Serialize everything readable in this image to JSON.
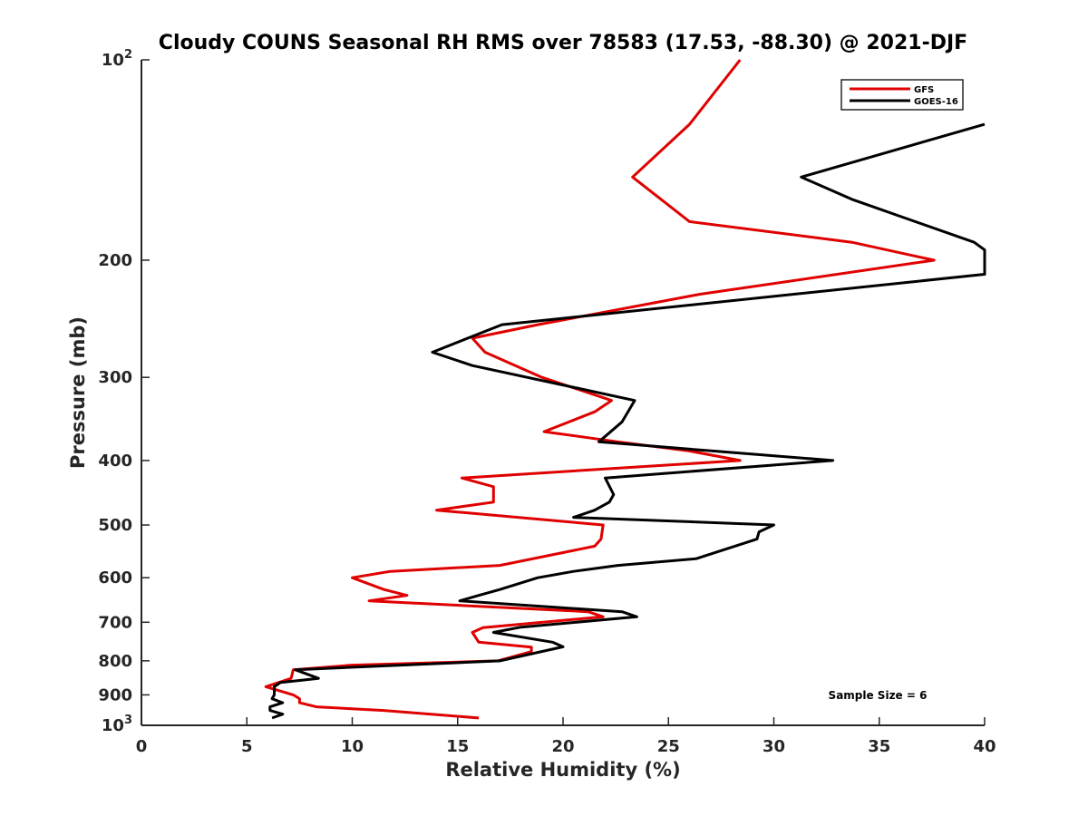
{
  "chart_data": {
    "type": "line",
    "title": "Cloudy COUNS Seasonal RH RMS over 78583 (17.53, -88.30) @ 2021-DJF",
    "xlabel": "Relative Humidity (%)",
    "ylabel": "Pressure (mb)",
    "xlim": [
      0,
      40
    ],
    "ylim": [
      100,
      1000
    ],
    "yscale": "log",
    "yreversed": true,
    "x_ticks": [
      "0",
      "5",
      "10",
      "15",
      "20",
      "25",
      "30",
      "35",
      "40"
    ],
    "y_ticks": [
      {
        "value": 100,
        "label": "10",
        "sup": "2"
      },
      {
        "value": 200,
        "label": "200",
        "sup": ""
      },
      {
        "value": 300,
        "label": "300",
        "sup": ""
      },
      {
        "value": 400,
        "label": "400",
        "sup": ""
      },
      {
        "value": 500,
        "label": "500",
        "sup": ""
      },
      {
        "value": 600,
        "label": "600",
        "sup": ""
      },
      {
        "value": 700,
        "label": "700",
        "sup": ""
      },
      {
        "value": 800,
        "label": "800",
        "sup": ""
      },
      {
        "value": 900,
        "label": "900",
        "sup": ""
      },
      {
        "value": 1000,
        "label": "10",
        "sup": "3"
      }
    ],
    "legend_position": "top-right",
    "annotation": "Sample Size = 6",
    "series": [
      {
        "name": "GFS",
        "color": "#e00000",
        "points": [
          [
            28.4,
            100
          ],
          [
            26.0,
            125
          ],
          [
            23.3,
            150
          ],
          [
            26.0,
            175
          ],
          [
            33.7,
            188
          ],
          [
            37.6,
            200
          ],
          [
            26.5,
            225
          ],
          [
            18.8,
            250
          ],
          [
            15.7,
            262
          ],
          [
            16.3,
            275
          ],
          [
            19.0,
            300
          ],
          [
            22.3,
            325
          ],
          [
            21.5,
            338
          ],
          [
            19.1,
            362
          ],
          [
            22.6,
            375
          ],
          [
            26.0,
            387
          ],
          [
            28.4,
            400
          ],
          [
            15.2,
            425
          ],
          [
            16.7,
            438
          ],
          [
            16.7,
            462
          ],
          [
            14.0,
            475
          ],
          [
            21.9,
            500
          ],
          [
            21.8,
            525
          ],
          [
            21.5,
            538
          ],
          [
            17.0,
            575
          ],
          [
            11.8,
            587
          ],
          [
            10.0,
            600
          ],
          [
            11.5,
            625
          ],
          [
            12.6,
            638
          ],
          [
            10.8,
            650
          ],
          [
            21.2,
            675
          ],
          [
            21.9,
            687
          ],
          [
            16.2,
            713
          ],
          [
            15.7,
            725
          ],
          [
            16.0,
            750
          ],
          [
            18.5,
            763
          ],
          [
            18.5,
            775
          ],
          [
            16.9,
            800
          ],
          [
            10.0,
            812
          ],
          [
            7.2,
            825
          ],
          [
            7.1,
            850
          ],
          [
            5.9,
            875
          ],
          [
            7.2,
            900
          ],
          [
            7.5,
            912
          ],
          [
            7.5,
            925
          ],
          [
            8.3,
            938
          ],
          [
            11.5,
            950
          ],
          [
            16.0,
            975
          ]
        ]
      },
      {
        "name": "GOES-16",
        "color": "#000000",
        "points": [
          [
            40.0,
            125
          ],
          [
            31.3,
            150
          ],
          [
            33.7,
            162
          ],
          [
            39.5,
            188
          ],
          [
            40.0,
            193
          ],
          [
            40.0,
            210
          ],
          [
            17.1,
            250
          ],
          [
            13.8,
            275
          ],
          [
            15.7,
            288
          ],
          [
            23.4,
            325
          ],
          [
            22.8,
            350
          ],
          [
            21.7,
            375
          ],
          [
            27.1,
            387
          ],
          [
            32.8,
            400
          ],
          [
            22.0,
            425
          ],
          [
            22.4,
            450
          ],
          [
            22.2,
            462
          ],
          [
            21.5,
            475
          ],
          [
            20.5,
            487
          ],
          [
            30.0,
            500
          ],
          [
            29.3,
            512
          ],
          [
            29.2,
            525
          ],
          [
            26.3,
            562
          ],
          [
            22.6,
            575
          ],
          [
            20.5,
            587
          ],
          [
            18.8,
            600
          ],
          [
            17.0,
            625
          ],
          [
            16.0,
            638
          ],
          [
            15.1,
            650
          ],
          [
            22.8,
            675
          ],
          [
            23.5,
            687
          ],
          [
            18.0,
            712
          ],
          [
            16.7,
            725
          ],
          [
            19.5,
            750
          ],
          [
            20.0,
            762
          ],
          [
            17.0,
            800
          ],
          [
            7.3,
            825
          ],
          [
            8.4,
            850
          ],
          [
            6.6,
            862
          ],
          [
            6.3,
            875
          ],
          [
            6.3,
            900
          ],
          [
            6.2,
            912
          ],
          [
            6.7,
            925
          ],
          [
            6.1,
            938
          ],
          [
            6.1,
            950
          ],
          [
            6.7,
            962
          ],
          [
            6.2,
            975
          ]
        ]
      }
    ]
  }
}
